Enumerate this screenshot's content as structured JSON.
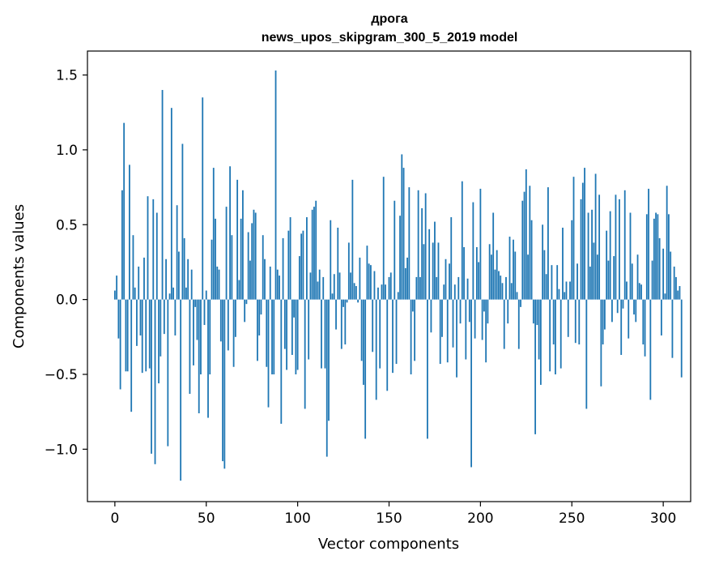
{
  "chart_data": {
    "type": "bar",
    "title": "дрога",
    "subtitle": "news_upos_skipgram_300_5_2019 model",
    "xlabel": "Vector components",
    "ylabel": "Components values",
    "xlim": [
      -15,
      315
    ],
    "ylim": [
      -1.35,
      1.66
    ],
    "xticks": [
      0,
      50,
      100,
      150,
      200,
      250,
      300
    ],
    "xtick_labels": [
      "0",
      "50",
      "100",
      "150",
      "200",
      "250",
      "300"
    ],
    "yticks": [
      -1.0,
      -0.5,
      0.0,
      0.5,
      1.0,
      1.5
    ],
    "ytick_labels": [
      "−1.0",
      "−0.5",
      "0.0",
      "0.5",
      "1.0",
      "1.5"
    ],
    "bar_color": "#1f77b4",
    "grid": false,
    "values": [
      0.06,
      0.16,
      -0.26,
      -0.6,
      0.73,
      1.18,
      -0.48,
      -0.48,
      0.9,
      -0.75,
      0.43,
      0.08,
      -0.31,
      0.22,
      -0.24,
      -0.49,
      0.28,
      -0.48,
      0.69,
      -0.46,
      -1.03,
      0.67,
      -1.1,
      0.58,
      -0.56,
      -0.38,
      1.4,
      -0.23,
      0.27,
      -0.98,
      0.04,
      1.28,
      0.08,
      -0.24,
      0.63,
      0.32,
      -1.21,
      1.04,
      0.41,
      0.08,
      0.27,
      -0.63,
      0.2,
      -0.44,
      -0.05,
      -0.27,
      -0.76,
      -0.5,
      1.35,
      -0.17,
      0.06,
      -0.79,
      -0.5,
      0.4,
      0.88,
      0.54,
      0.22,
      0.2,
      -0.28,
      -1.08,
      -1.13,
      0.62,
      -0.34,
      0.89,
      0.43,
      -0.45,
      -0.25,
      0.8,
      0.13,
      0.54,
      0.73,
      -0.15,
      -0.03,
      0.45,
      0.26,
      0.51,
      0.6,
      0.58,
      -0.41,
      -0.24,
      -0.1,
      0.43,
      0.27,
      -0.45,
      -0.72,
      0.22,
      -0.5,
      -0.5,
      1.53,
      0.2,
      0.16,
      -0.83,
      0.41,
      -0.33,
      -0.47,
      0.46,
      0.55,
      -0.37,
      -0.12,
      -0.5,
      -0.47,
      0.29,
      0.44,
      0.46,
      -0.73,
      0.55,
      -0.4,
      0.18,
      0.6,
      0.62,
      0.66,
      0.12,
      0.2,
      -0.46,
      0.15,
      -0.46,
      -1.05,
      -0.81,
      0.53,
      0.04,
      0.17,
      -0.2,
      0.48,
      0.18,
      -0.33,
      -0.05,
      -0.3,
      -0.02,
      0.38,
      0.18,
      0.8,
      0.11,
      0.09,
      -0.02,
      0.28,
      -0.41,
      -0.57,
      -0.93,
      0.36,
      0.24,
      0.23,
      -0.35,
      0.19,
      -0.67,
      0.08,
      -0.46,
      0.1,
      0.82,
      0.1,
      -0.61,
      0.15,
      0.18,
      -0.49,
      0.66,
      -0.43,
      0.05,
      0.56,
      0.97,
      0.88,
      0.21,
      0.28,
      0.75,
      -0.5,
      -0.08,
      -0.41,
      0.15,
      0.73,
      0.15,
      0.61,
      0.37,
      0.71,
      -0.93,
      0.47,
      -0.22,
      0.38,
      0.52,
      0.15,
      0.38,
      -0.43,
      -0.25,
      0.1,
      0.27,
      -0.42,
      0.24,
      0.55,
      -0.32,
      0.1,
      -0.52,
      0.15,
      -0.16,
      0.79,
      0.35,
      -0.4,
      0.14,
      -0.15,
      -1.12,
      0.65,
      -0.26,
      0.35,
      0.25,
      0.74,
      -0.27,
      -0.08,
      -0.42,
      -0.16,
      0.37,
      0.3,
      0.58,
      0.2,
      0.33,
      0.19,
      0.16,
      0.11,
      -0.33,
      0.15,
      -0.16,
      0.42,
      0.11,
      0.4,
      0.32,
      0.05,
      -0.33,
      -0.05,
      0.66,
      0.72,
      0.87,
      0.3,
      0.76,
      0.53,
      -0.16,
      -0.9,
      -0.17,
      -0.4,
      -0.57,
      0.5,
      0.33,
      0.17,
      0.75,
      -0.48,
      0.23,
      -0.3,
      -0.5,
      0.23,
      0.07,
      -0.46,
      0.48,
      0.05,
      0.12,
      -0.25,
      0.12,
      0.53,
      0.82,
      -0.29,
      0.24,
      -0.3,
      0.67,
      0.78,
      0.88,
      -0.73,
      0.58,
      0.22,
      0.6,
      0.38,
      0.84,
      0.3,
      0.7,
      -0.58,
      -0.3,
      -0.2,
      0.46,
      0.26,
      0.59,
      -0.15,
      0.29,
      0.7,
      -0.09,
      0.67,
      -0.37,
      -0.06,
      0.73,
      0.12,
      -0.26,
      0.58,
      0.24,
      -0.1,
      -0.15,
      0.3,
      0.11,
      0.1,
      -0.3,
      -0.38,
      0.57,
      0.74,
      -0.67,
      0.26,
      0.54,
      0.58,
      0.57,
      0.41,
      -0.24,
      0.34,
      0.04,
      0.76,
      0.57,
      0.32,
      -0.39,
      0.22,
      0.15,
      0.06,
      0.09,
      -0.52
    ]
  }
}
